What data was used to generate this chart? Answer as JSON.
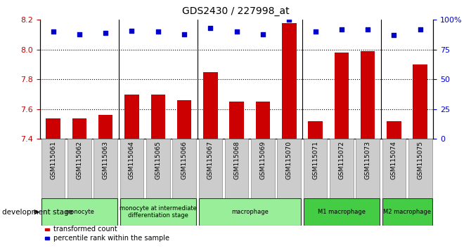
{
  "title": "GDS2430 / 227998_at",
  "samples": [
    "GSM115061",
    "GSM115062",
    "GSM115063",
    "GSM115064",
    "GSM115065",
    "GSM115066",
    "GSM115067",
    "GSM115068",
    "GSM115069",
    "GSM115070",
    "GSM115071",
    "GSM115072",
    "GSM115073",
    "GSM115074",
    "GSM115075"
  ],
  "bar_values": [
    7.54,
    7.54,
    7.56,
    7.7,
    7.7,
    7.66,
    7.85,
    7.65,
    7.65,
    8.18,
    7.52,
    7.98,
    7.99,
    7.52,
    7.9
  ],
  "dot_values": [
    90,
    88,
    89,
    91,
    90,
    88,
    93,
    90,
    88,
    100,
    90,
    92,
    92,
    87,
    92
  ],
  "bar_color": "#cc0000",
  "dot_color": "#0000cc",
  "ylim_left": [
    7.4,
    8.2
  ],
  "ylim_right": [
    0,
    100
  ],
  "yticks_left": [
    7.4,
    7.6,
    7.8,
    8.0,
    8.2
  ],
  "yticks_right": [
    0,
    25,
    50,
    75,
    100
  ],
  "grid_values": [
    7.6,
    7.8,
    8.0
  ],
  "bar_width": 0.55,
  "groups": [
    {
      "label": "monocyte",
      "start": 0,
      "end": 2,
      "color": "#99ee99"
    },
    {
      "label": "monocyte at intermediate\ndifferentiation stage",
      "start": 3,
      "end": 5,
      "color": "#99ee99"
    },
    {
      "label": "macrophage",
      "start": 6,
      "end": 9,
      "color": "#99ee99"
    },
    {
      "label": "M1 macrophage",
      "start": 10,
      "end": 12,
      "color": "#44cc44"
    },
    {
      "label": "M2 macrophage",
      "start": 13,
      "end": 14,
      "color": "#44cc44"
    }
  ],
  "group_borders": [
    2.5,
    5.5,
    9.5,
    12.5
  ],
  "dev_stage_label": "development stage",
  "legend_items": [
    {
      "color": "#cc0000",
      "label": "transformed count"
    },
    {
      "color": "#0000cc",
      "label": "percentile rank within the sample"
    }
  ],
  "bg_color": "#ffffff",
  "tick_color_left": "#cc0000",
  "tick_color_right": "#0000cc",
  "sample_box_color": "#cccccc",
  "figsize": [
    6.7,
    3.54
  ],
  "dpi": 100
}
